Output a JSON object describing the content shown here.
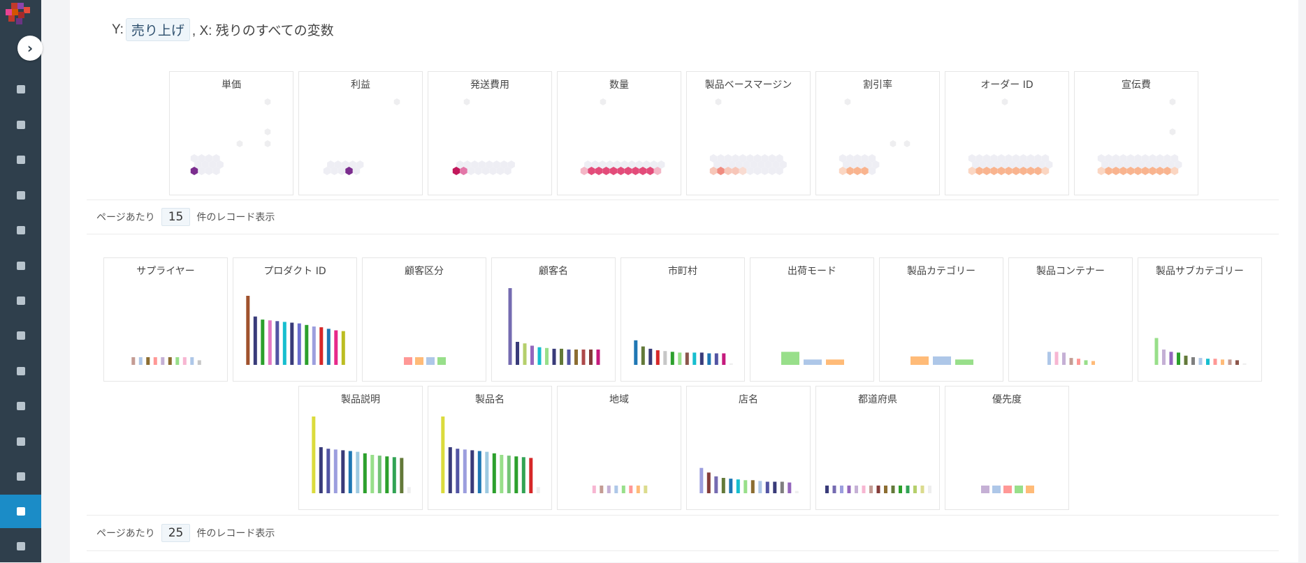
{
  "formula": {
    "y_label": "Y:",
    "y_value": "売り上げ",
    "rest": ", X: 残りのすべての変数"
  },
  "sidebar": {
    "items": [
      "book-icon",
      "folder-icon",
      "camera-folder-icon",
      "gauge-icon",
      "dashboard-icon",
      "flow-icon",
      "share-icon",
      "transform-icon",
      "grid-icon",
      "bar-chart-icon",
      "scatter-icon",
      "network-icon",
      "model-icon",
      "list-icon"
    ],
    "active_index": 12,
    "accent": "#1b8cc7"
  },
  "numeric_section": {
    "titles": [
      "単価",
      "利益",
      "発送費用",
      "数量",
      "製品ベースマージン",
      "割引率",
      "オーダー ID",
      "宣伝費"
    ]
  },
  "pager1": {
    "prefix": "ページあたり",
    "value": "15",
    "suffix": "件のレコード表示"
  },
  "categorical_section": {
    "row1_titles": [
      "サプライヤー",
      "プロダクト ID",
      "顧客区分",
      "顧客名",
      "市町村",
      "出荷モード",
      "製品カテゴリー",
      "製品コンテナー",
      "製品サブカテゴリー"
    ],
    "row2_titles": [
      "製品説明",
      "製品名",
      "地域",
      "店名",
      "都道府県",
      "優先度"
    ]
  },
  "pager2": {
    "prefix": "ページあたり",
    "value": "25",
    "suffix": "件のレコード表示"
  },
  "chart_data": [
    {
      "type": "heatmap",
      "title": "単価"
    },
    {
      "type": "heatmap",
      "title": "利益"
    },
    {
      "type": "heatmap",
      "title": "発送費用"
    },
    {
      "type": "heatmap",
      "title": "数量"
    },
    {
      "type": "heatmap",
      "title": "製品ベースマージン"
    },
    {
      "type": "heatmap",
      "title": "割引率"
    },
    {
      "type": "heatmap",
      "title": "オーダー ID"
    },
    {
      "type": "heatmap",
      "title": "宣伝費"
    },
    {
      "type": "bar",
      "title": "サプライヤー",
      "values": [
        10,
        10,
        10,
        10,
        10,
        10,
        10,
        10,
        10,
        6
      ],
      "colors": [
        "#c49c94",
        "#aec7e8",
        "#8c6d31",
        "#ff9896",
        "#c5b0d5",
        "#8c6d31",
        "#98df8a",
        "#f7b6d2",
        "#aec7e8",
        "#c7c7c7"
      ]
    },
    {
      "type": "bar",
      "title": "プロダクト ID",
      "values": [
        90,
        63,
        59,
        58,
        57,
        56,
        55,
        54,
        52,
        50,
        49,
        47,
        45,
        44
      ],
      "colors": [
        "#a0522d",
        "#393b79",
        "#2ca02c",
        "#e377c2",
        "#5254a3",
        "#17becf",
        "#393b79",
        "#6b6ecf",
        "#2ca02c",
        "#9c9ede",
        "#d62728",
        "#1f77b4",
        "#e7298a",
        "#bcbd22"
      ]
    },
    {
      "type": "bar",
      "title": "顧客区分",
      "values": [
        10,
        10,
        10,
        10
      ],
      "colors": [
        "#ff9896",
        "#ffbb78",
        "#aec7e8",
        "#98df8a"
      ]
    },
    {
      "type": "bar",
      "title": "顧客名",
      "values": [
        100,
        30,
        28,
        25,
        23,
        22,
        21,
        21,
        20,
        20,
        20,
        20,
        20
      ],
      "colors": [
        "#756bb1",
        "#393b79",
        "#b5cf6b",
        "#9467bd",
        "#17becf",
        "#98df8a",
        "#393b79",
        "#637939",
        "#5254a3",
        "#8c6d31",
        "#ad494a",
        "#843c39",
        "#c51b7d"
      ]
    },
    {
      "type": "bar",
      "title": "市町村",
      "values": [
        32,
        24,
        21,
        19,
        18,
        17,
        16,
        16,
        16,
        16,
        15,
        15,
        15,
        2
      ],
      "colors": [
        "#1f77b4",
        "#637939",
        "#393b79",
        "#d62728",
        "#c7c7c7",
        "#2ca02c",
        "#98df8a",
        "#8c564b",
        "#17becf",
        "#393b79",
        "#1f77b4",
        "#5254a3",
        "#c51b7d",
        "#eeeeee"
      ]
    },
    {
      "type": "bar",
      "title": "出荷モード",
      "values": [
        17,
        7,
        7
      ],
      "colors": [
        "#98df8a",
        "#aec7e8",
        "#ffbb78"
      ]
    },
    {
      "type": "bar",
      "title": "製品カテゴリー",
      "values": [
        11,
        11,
        7
      ],
      "colors": [
        "#ffbb78",
        "#aec7e8",
        "#98df8a"
      ]
    },
    {
      "type": "bar",
      "title": "製品コンテナー",
      "values": [
        17,
        17,
        16,
        9,
        8,
        6,
        5
      ],
      "colors": [
        "#aec7e8",
        "#f7b6d2",
        "#c5b0d5",
        "#c49c94",
        "#ff9896",
        "#98df8a",
        "#ffbb78"
      ]
    },
    {
      "type": "bar",
      "title": "製品サブカテゴリー",
      "values": [
        35,
        20,
        17,
        16,
        12,
        10,
        9,
        8,
        8,
        7,
        7,
        6,
        2
      ],
      "colors": [
        "#98df8a",
        "#c5b0d5",
        "#9467bd",
        "#2ca02c",
        "#637939",
        "#7f7f7f",
        "#aec7e8",
        "#17becf",
        "#ff9896",
        "#ffbb78",
        "#c49c94",
        "#8c564b",
        "#eeeeee"
      ]
    },
    {
      "type": "bar",
      "title": "製品説明",
      "values": [
        100,
        60,
        58,
        57,
        56,
        55,
        54,
        52,
        50,
        49,
        48,
        47,
        46,
        8
      ],
      "colors": [
        "#dbdb3d",
        "#393b79",
        "#5254a3",
        "#9c9ede",
        "#393b79",
        "#1f77b4",
        "#9ecae1",
        "#2ca02c",
        "#98df8a",
        "#74c476",
        "#2ca02c",
        "#31a354",
        "#637939",
        "#eeeeee"
      ]
    },
    {
      "type": "bar",
      "title": "製品名",
      "values": [
        100,
        60,
        58,
        57,
        56,
        55,
        54,
        52,
        50,
        49,
        48,
        47,
        46,
        8
      ],
      "colors": [
        "#dbdb3d",
        "#393b79",
        "#5254a3",
        "#9c9ede",
        "#393b79",
        "#1f77b4",
        "#9ecae1",
        "#2ca02c",
        "#98df8a",
        "#74c476",
        "#2ca02c",
        "#31a354",
        "#d62728",
        "#eeeeee"
      ]
    },
    {
      "type": "bar",
      "title": "地域",
      "values": [
        10,
        10,
        10,
        10,
        10,
        10,
        10,
        10
      ],
      "colors": [
        "#f7b6d2",
        "#c49c94",
        "#c5b0d5",
        "#aec7e8",
        "#98df8a",
        "#ff9896",
        "#ffbb78",
        "#dbdb8d"
      ]
    },
    {
      "type": "bar",
      "title": "店名",
      "values": [
        33,
        27,
        22,
        20,
        19,
        18,
        17,
        17,
        16,
        15,
        15,
        15,
        14,
        3
      ],
      "colors": [
        "#9c9ede",
        "#843c39",
        "#756bb1",
        "#637939",
        "#1f77b4",
        "#17becf",
        "#98df8a",
        "#8c6d31",
        "#aec7e8",
        "#5254a3",
        "#393b79",
        "#7f7f7f",
        "#9467bd",
        "#eeeeee"
      ]
    },
    {
      "type": "bar",
      "title": "都道府県",
      "values": [
        10,
        10,
        10,
        10,
        10,
        10,
        10,
        10,
        10,
        10,
        10,
        10,
        10,
        10,
        10
      ],
      "colors": [
        "#393b79",
        "#756bb1",
        "#9c9ede",
        "#9467bd",
        "#c5b0d5",
        "#f7b6d2",
        "#c49c94",
        "#843c39",
        "#8c6d31",
        "#637939",
        "#2ca02c",
        "#31a354",
        "#b5cf6b",
        "#dbdb8d",
        "#eeeeee"
      ]
    },
    {
      "type": "bar",
      "title": "優先度",
      "values": [
        10,
        10,
        10,
        10,
        10
      ],
      "colors": [
        "#c5b0d5",
        "#aec7e8",
        "#ff9896",
        "#98df8a",
        "#ffbb78"
      ]
    }
  ]
}
